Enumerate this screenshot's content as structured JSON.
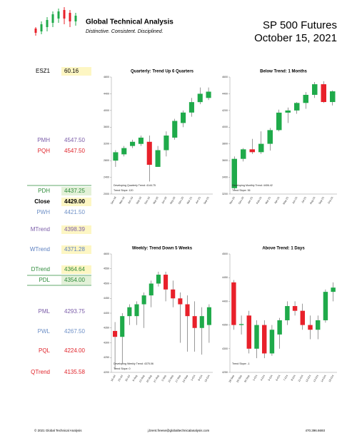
{
  "header": {
    "company": "Global Technical Analysis",
    "tagline": "Distinctive.  Consistent.  Disciplined.",
    "title": "SP 500 Futures",
    "date": "October 15, 2021"
  },
  "levels": [
    {
      "label": "ESZ1",
      "value": "60.16",
      "color": "#000000",
      "highlight": "#fdf6c3"
    },
    {
      "label": "PMH",
      "value": "4547.50",
      "color": "#7a5ca8",
      "highlight": null
    },
    {
      "label": "PQH",
      "value": "4547.50",
      "color": "#e0242b",
      "highlight": null
    },
    {
      "label": "PDH",
      "value": "4437.25",
      "color": "#2e8b3a",
      "highlight": "#e3f1d8"
    },
    {
      "label": "Close",
      "value": "4429.00",
      "color": "#000000",
      "highlight": "#fdf6c3"
    },
    {
      "label": "PWH",
      "value": "4421.50",
      "color": "#6d8fc6",
      "highlight": null
    },
    {
      "label": "MTrend",
      "value": "4398.39",
      "color": "#7a5ca8",
      "highlight": "#fdf6c3"
    },
    {
      "label": "WTrend",
      "value": "4371.28",
      "color": "#5b7fc0",
      "highlight": "#fdf6c3"
    },
    {
      "label": "DTrend",
      "value": "4364.64",
      "color": "#2e8b3a",
      "highlight": "#fdf6c3"
    },
    {
      "label": "PDL",
      "value": "4354.00",
      "color": "#2e8b3a",
      "highlight": "#e3f1d8"
    },
    {
      "label": "PML",
      "value": "4293.75",
      "color": "#7a5ca8",
      "highlight": null
    },
    {
      "label": "PWL",
      "value": "4267.50",
      "color": "#6d8fc6",
      "highlight": null
    },
    {
      "label": "PQL",
      "value": "4224.00",
      "color": "#e0242b",
      "highlight": null
    },
    {
      "label": "QTrend",
      "value": "4135.58",
      "color": "#e0242b",
      "highlight": null
    }
  ],
  "chart_data": [
    {
      "type": "candlestick",
      "title": "Quarterly: Trend Up 6 Quarters",
      "notes": [
        "Developing Quarterly Trend: 4144.75",
        "Trend Slope: 120"
      ],
      "categories": [
        "Dec-18",
        "Mar-19",
        "Jun-19",
        "Sep-19",
        "Dec-19",
        "Mar-20",
        "Jun-20",
        "Sep-20",
        "Dec-20",
        "Mar-21",
        "Jun-21",
        "Sep-21"
      ],
      "open": [
        2800,
        2950,
        3150,
        3200,
        3250,
        2650,
        3050,
        3350,
        3700,
        3950,
        4200,
        4300
      ],
      "high": [
        3050,
        3150,
        3300,
        3400,
        3400,
        3150,
        3500,
        3800,
        4000,
        4300,
        4550,
        4550
      ],
      "low": [
        2650,
        2900,
        3100,
        3150,
        2300,
        2650,
        2900,
        3300,
        3600,
        3850,
        4150,
        4250
      ],
      "close": [
        3000,
        3100,
        3250,
        3350,
        2700,
        3050,
        3400,
        3750,
        3950,
        4200,
        4400,
        4450
      ],
      "up_color": "#1faa4a",
      "down_color": "#e8202a",
      "ylim": [
        2000,
        4800
      ],
      "yticks": [
        2000,
        2400,
        2800,
        3200,
        3600,
        4000,
        4400,
        4800
      ]
    },
    {
      "type": "candlestick",
      "title": "Below Trend: 1 Months",
      "notes": [
        "Developing Monthly Trend: 4406.42",
        "Trend Slope: 36"
      ],
      "categories": [
        "Nov-20",
        "Dec-20",
        "Jan-21",
        "Feb-21",
        "Mar-21",
        "Apr-21",
        "May-21",
        "Jun-21",
        "Jul-21",
        "Aug-21",
        "Sep-21",
        "Oct-21"
      ],
      "open": [
        3270,
        3621,
        3735,
        3701,
        3801,
        3965,
        4174,
        4200,
        4290,
        4387,
        4514,
        4301
      ],
      "high": [
        3650,
        3750,
        3860,
        3950,
        3990,
        4210,
        4235,
        4300,
        4420,
        4540,
        4550,
        4440
      ],
      "low": [
        3250,
        3590,
        3680,
        3680,
        3720,
        3950,
        4050,
        4160,
        4220,
        4350,
        4290,
        4260
      ],
      "close": [
        3621,
        3735,
        3701,
        3801,
        3965,
        4174,
        4200,
        4290,
        4387,
        4514,
        4301,
        4429
      ],
      "up_color": "#1faa4a",
      "down_color": "#e8202a",
      "ylim": [
        3200,
        4600
      ],
      "yticks": [
        3200,
        3400,
        3600,
        3800,
        4000,
        4200,
        4400,
        4600
      ]
    },
    {
      "type": "candlestick",
      "title": "Weekly: Trend Down 5 Weeks",
      "notes": [
        "Developing Weekly Trend: 4375.06",
        "Trend Slope: 0"
      ],
      "categories": [
        "16-Jul",
        "23-Jul",
        "30-Jul",
        "6-Aug",
        "13-Aug",
        "20-Aug",
        "27-Aug",
        "3-Sep",
        "10-Sep",
        "17-Sep",
        "24-Sep",
        "1-Oct",
        "8-Oct",
        "15-Oct"
      ],
      "open": [
        4340,
        4320,
        4390,
        4390,
        4430,
        4460,
        4500,
        4530,
        4480,
        4450,
        4430,
        4390,
        4350,
        4360
      ],
      "high": [
        4370,
        4400,
        4430,
        4440,
        4470,
        4510,
        4540,
        4540,
        4510,
        4470,
        4460,
        4440,
        4420,
        4430
      ],
      "low": [
        4210,
        4230,
        4360,
        4360,
        4350,
        4420,
        4490,
        4440,
        4420,
        4300,
        4270,
        4270,
        4260,
        4300
      ],
      "close": [
        4320,
        4390,
        4420,
        4430,
        4460,
        4500,
        4530,
        4480,
        4450,
        4430,
        4390,
        4350,
        4390,
        4420
      ],
      "up_color": "#1faa4a",
      "down_color": "#e8202a",
      "ylim": [
        4200,
        4600
      ],
      "yticks": [
        4200,
        4250,
        4300,
        4350,
        4400,
        4450,
        4500,
        4550,
        4600
      ]
    },
    {
      "type": "candlestick",
      "title": "Above Trend: 1 Days",
      "notes": [
        "Trend Slope: -1"
      ],
      "categories": [
        "28-Sep",
        "29-Sep",
        "30-Sep",
        "1-Oct",
        "4-Oct",
        "5-Oct",
        "6-Oct",
        "7-Oct",
        "8-Oct",
        "11-Oct",
        "12-Oct",
        "13-Oct",
        "14-Oct",
        "15-Oct"
      ],
      "open": [
        4440,
        4350,
        4370,
        4300,
        4350,
        4290,
        4330,
        4360,
        4390,
        4380,
        4350,
        4340,
        4360,
        4420
      ],
      "high": [
        4445,
        4370,
        4380,
        4360,
        4360,
        4350,
        4365,
        4400,
        4400,
        4395,
        4370,
        4370,
        4425,
        4440
      ],
      "low": [
        4340,
        4330,
        4290,
        4280,
        4280,
        4285,
        4300,
        4350,
        4370,
        4340,
        4320,
        4320,
        4355,
        4400
      ],
      "close": [
        4350,
        4352,
        4300,
        4350,
        4290,
        4340,
        4360,
        4390,
        4380,
        4350,
        4340,
        4360,
        4420,
        4429
      ],
      "up_color": "#1faa4a",
      "down_color": "#e8202a",
      "ylim": [
        4250,
        4500
      ],
      "yticks": [
        4250,
        4300,
        4350,
        4400,
        4450,
        4500
      ]
    }
  ],
  "footer": {
    "copyright": "© 2021 Global Technical Analysis",
    "email": "j.brent.freese@globaltechnicalanalysis.com",
    "phone": "470.396.6693"
  }
}
